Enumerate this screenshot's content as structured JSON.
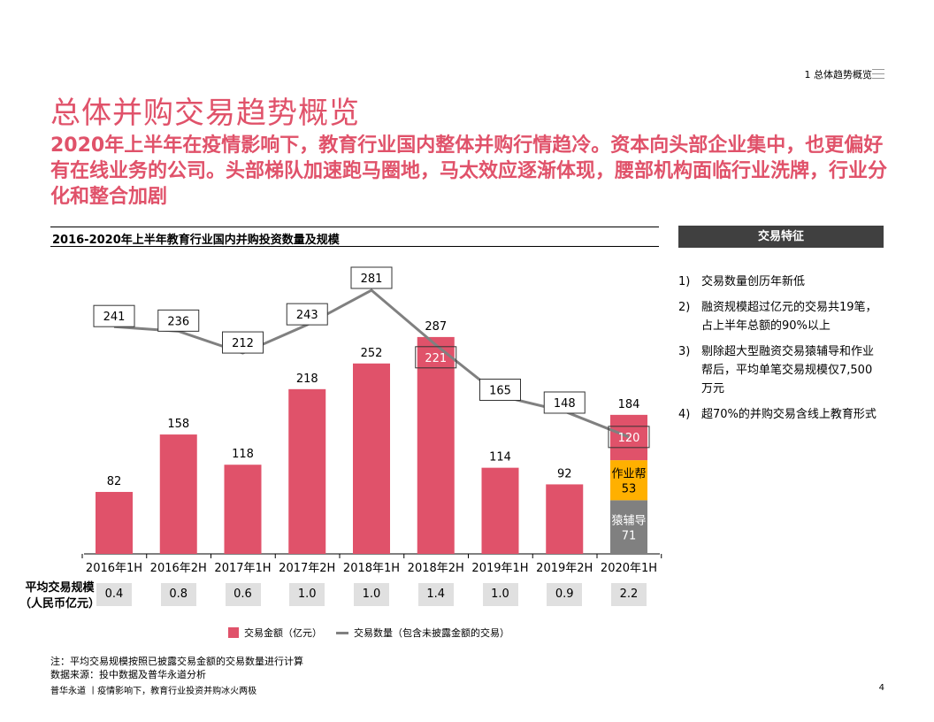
{
  "header": {
    "section": "1 总体趋势概览",
    "menu_icon": "hamburger-icon"
  },
  "title": "总体并购交易趋势概览",
  "subtitle": "2020年上半年在疫情影响下，教育行业国内整体并购行情趋冷。资本向头部企业集中，也更偏好有在线业务的公司。头部梯队加速跑马圈地，马太效应逐渐体现，腰部机构面临行业洗牌，行业分化和整合加剧",
  "chart_data": {
    "type": "bar",
    "title": "2016-2020年上半年教育行业国内并购投资数量及规模",
    "categories": [
      "2016年1H",
      "2016年2H",
      "2017年1H",
      "2017年2H",
      "2018年1H",
      "2018年2H",
      "2019年1H",
      "2019年2H",
      "2020年1H"
    ],
    "series": [
      {
        "name": "交易金额（亿元）",
        "type": "bar",
        "color": "#e0526a",
        "values": [
          82,
          158,
          118,
          218,
          252,
          287,
          114,
          92,
          184
        ]
      },
      {
        "name": "交易数量（包含未披露金额的交易）",
        "type": "line",
        "color": "#808080",
        "values": [
          241,
          236,
          212,
          243,
          281,
          221,
          165,
          148,
          120
        ]
      }
    ],
    "stack_2020_1H": [
      {
        "label": "",
        "value": 60,
        "color": "#e0526a"
      },
      {
        "label": "作业帮",
        "value": 53,
        "color": "#ffb000"
      },
      {
        "label": "猿辅导",
        "value": 71,
        "color": "#808080"
      }
    ],
    "avg_label": [
      "平均交易规模",
      "（人民币亿元）"
    ],
    "avg_values": [
      "0.4",
      "0.8",
      "0.6",
      "1.0",
      "1.0",
      "1.4",
      "1.0",
      "0.9",
      "2.2"
    ]
  },
  "side": {
    "title": "交易特征",
    "items": [
      {
        "num": "1)",
        "text": "交易数量创历年新低"
      },
      {
        "num": "2)",
        "text": "融资规模超过亿元的交易共19笔，占上半年总额的90%以上"
      },
      {
        "num": "3)",
        "text": "剔除超大型融资交易猿辅导和作业帮后，平均单笔交易规模仅7,500万元"
      },
      {
        "num": "4)",
        "text": "超70%的并购交易含线上教育形式"
      }
    ]
  },
  "notes": [
    "注：平均交易规模按照已披露交易金额的交易数量进行计算",
    "数据来源：投中数据及普华永道分析"
  ],
  "footer": "普华永道 丨疫情影响下，教育行业投资并购冰火两极",
  "page": "4"
}
